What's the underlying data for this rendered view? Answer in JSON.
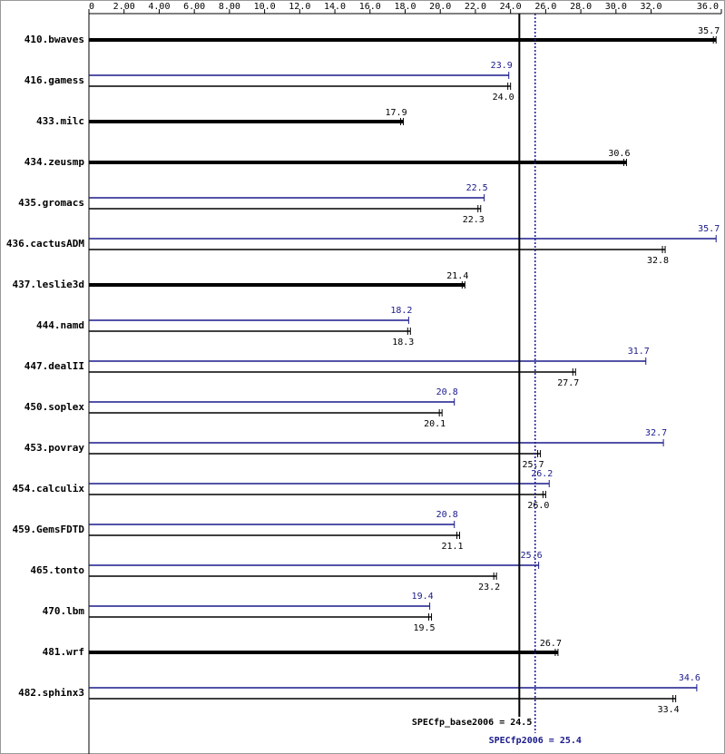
{
  "chart_data": {
    "type": "bar",
    "orientation": "horizontal",
    "categories": [
      "410.bwaves",
      "416.gamess",
      "433.milc",
      "434.zeusmp",
      "435.gromacs",
      "436.cactusADM",
      "437.leslie3d",
      "444.namd",
      "447.dealII",
      "450.soplex",
      "453.povray",
      "454.calculix",
      "459.GemsFDTD",
      "465.tonto",
      "470.lbm",
      "481.wrf",
      "482.sphinx3"
    ],
    "series": [
      {
        "color": "#1a1a8c",
        "values": [
          null,
          23.9,
          null,
          null,
          22.5,
          35.7,
          null,
          18.2,
          31.7,
          20.8,
          32.7,
          26.2,
          20.8,
          25.6,
          19.4,
          null,
          34.6
        ]
      },
      {
        "color": "#000000",
        "values": [
          35.7,
          24.0,
          17.9,
          30.6,
          22.3,
          32.8,
          21.4,
          18.3,
          27.7,
          20.1,
          25.7,
          26.0,
          21.1,
          23.2,
          19.5,
          26.7,
          33.4
        ],
        "value_labels": [
          "35.7",
          "24.0",
          "17.9",
          "30.6",
          "22.3",
          "32.8",
          "21.4",
          "18.3",
          "27.7",
          "20.1",
          "25.7",
          "26.0",
          "21.1",
          "23.2",
          "19.5",
          "26.7",
          "33.4"
        ]
      }
    ],
    "xlim": [
      0,
      36
    ],
    "xticks": [
      0,
      {
        "value": 2,
        "label": "2.00"
      },
      {
        "value": 4,
        "label": "4.00"
      },
      {
        "value": 6,
        "label": "6.00"
      },
      {
        "value": 8,
        "label": "8.00"
      },
      {
        "value": 10,
        "label": "10.0"
      },
      {
        "value": 12,
        "label": "12.0"
      },
      {
        "value": 14,
        "label": "14.0"
      },
      {
        "value": 16,
        "label": "16.0"
      },
      {
        "value": 18,
        "label": "18.0"
      },
      {
        "value": 20,
        "label": "20.0"
      },
      {
        "value": 22,
        "label": "22.0"
      },
      {
        "value": 24,
        "label": "24.0"
      },
      {
        "value": 26,
        "label": "26.0"
      },
      {
        "value": 28,
        "label": "28.0"
      },
      {
        "value": 30,
        "label": "30.0"
      },
      {
        "value": 32,
        "label": "32.0"
      },
      {
        "value": 36,
        "label": "36.0"
      }
    ],
    "reference_lines": [
      {
        "label": "SPECfp_base2006 = 24.5",
        "value": 24.5,
        "color": "#000000",
        "style": "solid"
      },
      {
        "label": "SPECfp2006 = 25.4",
        "value": 25.4,
        "color": "#1a1a8c",
        "style": "dotted"
      }
    ]
  }
}
